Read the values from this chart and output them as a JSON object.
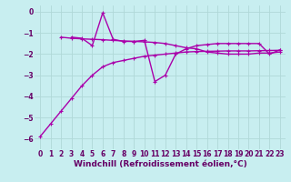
{
  "xlabel": "Windchill (Refroidissement éolien,°C)",
  "background_color": "#c8eef0",
  "grid_color": "#b0d8d8",
  "line_color": "#aa00aa",
  "xlim": [
    -0.5,
    23.5
  ],
  "ylim": [
    -6.5,
    0.3
  ],
  "yticks": [
    0,
    -1,
    -2,
    -3,
    -4,
    -5,
    -6
  ],
  "xticks": [
    0,
    1,
    2,
    3,
    4,
    5,
    6,
    7,
    8,
    9,
    10,
    11,
    12,
    13,
    14,
    15,
    16,
    17,
    18,
    19,
    20,
    21,
    22,
    23
  ],
  "line1_y": [
    -5.9,
    -5.3,
    -4.7,
    -4.1,
    -3.5,
    -3.0,
    -2.6,
    -2.4,
    -2.3,
    -2.2,
    -2.1,
    -2.05,
    -2.0,
    -1.95,
    -1.9,
    -1.88,
    -1.87,
    -1.86,
    -1.85,
    -1.85,
    -1.85,
    -1.84,
    -1.83,
    -1.82
  ],
  "line2_y": [
    null,
    null,
    null,
    -1.2,
    -1.25,
    -1.6,
    -0.05,
    -1.3,
    -1.4,
    -1.4,
    -1.35,
    -3.3,
    -3.0,
    -2.0,
    -1.75,
    -1.6,
    -1.55,
    -1.5,
    -1.5,
    -1.5,
    -1.5,
    -1.5,
    -2.0,
    -1.8
  ],
  "line3_y": [
    null,
    null,
    -1.2,
    -1.25,
    -1.28,
    -1.3,
    -1.32,
    -1.35,
    -1.38,
    -1.4,
    -1.42,
    -1.45,
    -1.5,
    -1.6,
    -1.7,
    -1.75,
    -1.9,
    -1.95,
    -2.0,
    -2.0,
    -2.0,
    -1.95,
    -1.95,
    -1.9
  ],
  "markersize": 3.5,
  "linewidth": 1.0,
  "tick_labelsize": 5.5,
  "xlabel_fontsize": 6.5
}
